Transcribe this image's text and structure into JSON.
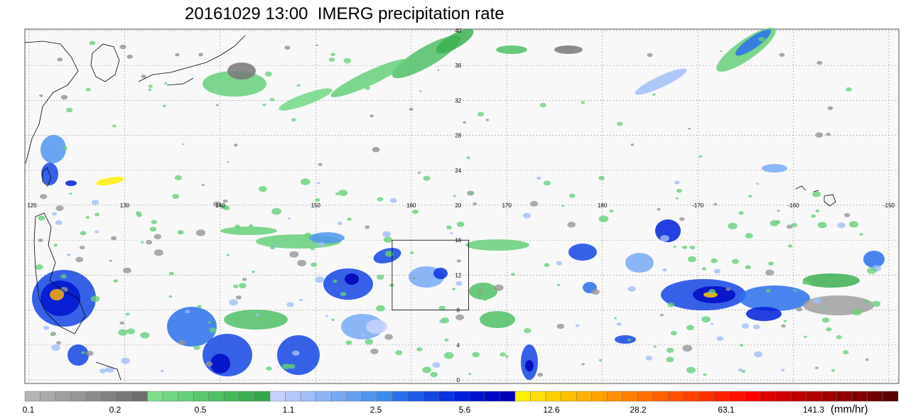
{
  "title": "20161029 13:00  IMERG precipitation rate",
  "map": {
    "lat_labels": [
      "40",
      "36",
      "32",
      "28",
      "24",
      "20",
      "16",
      "12",
      "8",
      "4",
      "0"
    ],
    "lon_labels": [
      "120",
      "130",
      "140",
      "150",
      "160",
      "170",
      "180",
      "-170",
      "-160",
      "-150"
    ],
    "box": {
      "lon_min": 158,
      "lon_max": 166,
      "lat_min": 8,
      "lat_max": 16
    }
  },
  "colorbar": {
    "units": "(mm/hr)",
    "tick_labels": [
      "0.1",
      "0.2",
      "0.5",
      "1.1",
      "2.5",
      "5.6",
      "12.6",
      "28.2",
      "63.1",
      "141.3"
    ],
    "colors": [
      "#b4b4b4",
      "#aaaaaa",
      "#a0a0a0",
      "#969696",
      "#8c8c8c",
      "#828282",
      "#787878",
      "#6e6e6e",
      "#7ee08e",
      "#72d884",
      "#66d07a",
      "#5ac870",
      "#50c066",
      "#46b85c",
      "#3cb052",
      "#34a84a",
      "#c8d2fa",
      "#b4c8fa",
      "#a0bef8",
      "#8cb4f6",
      "#78aaf4",
      "#64a0f2",
      "#5096f0",
      "#3c8cee",
      "#2a70ec",
      "#1e5ae8",
      "#1446e4",
      "#0a32e0",
      "#0020dc",
      "#0014d0",
      "#000ac4",
      "#0000b8",
      "#fff000",
      "#ffe000",
      "#ffd000",
      "#ffc000",
      "#ffb000",
      "#ffa000",
      "#ff9000",
      "#ff8000",
      "#ff7000",
      "#ff6000",
      "#ff5000",
      "#ff4000",
      "#ff3000",
      "#ff2000",
      "#ff1000",
      "#ff0000",
      "#e00000",
      "#d00000",
      "#c00000",
      "#b00000",
      "#a00000",
      "#900000",
      "#800000",
      "#700000",
      "#5a0000"
    ]
  }
}
